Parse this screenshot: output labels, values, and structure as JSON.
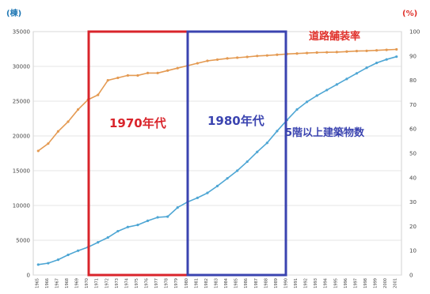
{
  "chart_data": {
    "type": "line",
    "left_axis_unit": "(棟)",
    "right_axis_unit": "(%)",
    "left_ylim": [
      0,
      35000
    ],
    "right_ylim": [
      0,
      100
    ],
    "left_ticks": [
      "0",
      "5000",
      "10000",
      "15000",
      "20000",
      "25000",
      "30000",
      "35000"
    ],
    "right_ticks": [
      "0",
      "10",
      "20",
      "30",
      "40",
      "50",
      "60",
      "70",
      "80",
      "90",
      "100"
    ],
    "x_ticks": [
      "1965",
      "1966",
      "1967",
      "1968",
      "1969",
      "1970",
      "1971",
      "1972",
      "1973",
      "1974",
      "1975",
      "1976",
      "1977",
      "1978",
      "1979",
      "1980",
      "1981",
      "1982",
      "1983",
      "1984",
      "1985",
      "1986",
      "1987",
      "1988",
      "1989",
      "1990",
      "1991",
      "1992",
      "1993",
      "1994",
      "1995",
      "1996",
      "1997",
      "1998",
      "1999",
      "2000",
      "2001"
    ],
    "grid": true,
    "series": [
      {
        "name": "道路舗装率",
        "axis": "right",
        "color": "#e49a52",
        "values": [
          51,
          54,
          59,
          63,
          68,
          72,
          74,
          80,
          81,
          82,
          82,
          83,
          83,
          84,
          85,
          86,
          87,
          88,
          88.5,
          89,
          89.3,
          89.6,
          90,
          90.2,
          90.5,
          90.8,
          91,
          91.2,
          91.4,
          91.5,
          91.6,
          91.8,
          92,
          92.1,
          92.3,
          92.5,
          92.7
        ]
      },
      {
        "name": "5階以上建築物数",
        "axis": "left",
        "color": "#4ea6d4",
        "values": [
          1500,
          1700,
          2200,
          2900,
          3500,
          4000,
          4700,
          5400,
          6300,
          6900,
          7200,
          7800,
          8300,
          8400,
          9700,
          10500,
          11100,
          11800,
          12800,
          13900,
          15000,
          16300,
          17700,
          19000,
          20700,
          22300,
          23800,
          24900,
          25800,
          26600,
          27400,
          28200,
          29000,
          29800,
          30500,
          31000,
          31400
        ]
      }
    ],
    "annotations": {
      "era_1970": "1970年代",
      "era_1980": "1980年代"
    }
  }
}
